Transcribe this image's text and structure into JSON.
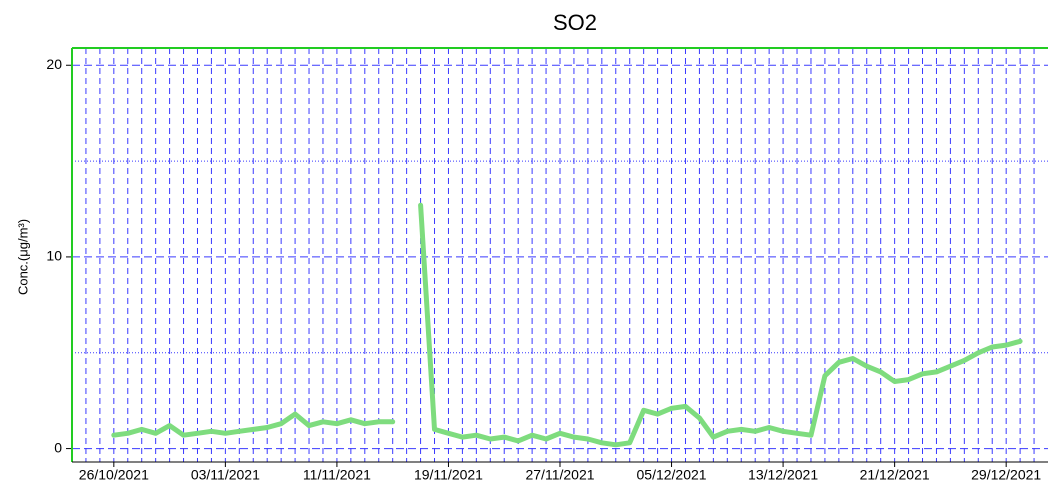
{
  "chart_data": {
    "type": "line",
    "title": "SO2",
    "y_label": "Conc.(μg/m³)",
    "x": [
      "26/10/2021",
      "27/10/2021",
      "28/10/2021",
      "29/10/2021",
      "30/10/2021",
      "31/10/2021",
      "01/11/2021",
      "02/11/2021",
      "03/11/2021",
      "04/11/2021",
      "05/11/2021",
      "06/11/2021",
      "07/11/2021",
      "08/11/2021",
      "09/11/2021",
      "10/11/2021",
      "11/11/2021",
      "12/11/2021",
      "13/11/2021",
      "14/11/2021",
      "15/11/2021",
      "16/11/2021",
      "17/11/2021",
      "18/11/2021",
      "19/11/2021",
      "20/11/2021",
      "21/11/2021",
      "22/11/2021",
      "23/11/2021",
      "24/11/2021",
      "25/11/2021",
      "26/11/2021",
      "27/11/2021",
      "28/11/2021",
      "29/11/2021",
      "30/11/2021",
      "01/12/2021",
      "02/12/2021",
      "03/12/2021",
      "04/12/2021",
      "05/12/2021",
      "06/12/2021",
      "07/12/2021",
      "08/12/2021",
      "09/12/2021",
      "10/12/2021",
      "11/12/2021",
      "12/12/2021",
      "13/12/2021",
      "14/12/2021",
      "15/12/2021",
      "16/12/2021",
      "17/12/2021",
      "18/12/2021",
      "19/12/2021",
      "20/12/2021",
      "21/12/2021",
      "22/12/2021",
      "23/12/2021",
      "24/12/2021",
      "25/12/2021",
      "26/12/2021",
      "27/12/2021",
      "28/12/2021",
      "29/12/2021",
      "30/12/2021"
    ],
    "series": [
      {
        "color": "#7edc7e",
        "values": [
          0.7,
          0.8,
          1.0,
          0.8,
          1.2,
          0.7,
          0.8,
          0.9,
          0.8,
          0.9,
          1.0,
          1.1,
          1.3,
          1.8,
          1.2,
          1.4,
          1.3,
          1.5,
          1.3,
          1.4,
          1.4,
          null,
          12.7,
          1.0,
          0.8,
          0.6,
          0.7,
          0.5,
          0.6,
          0.4,
          0.7,
          0.5,
          0.8,
          0.6,
          0.5,
          0.3,
          0.2,
          0.3,
          2.0,
          1.8,
          2.1,
          2.2,
          1.6,
          0.6,
          0.9,
          1.0,
          0.9,
          1.1,
          0.9,
          0.8,
          0.7,
          3.8,
          4.5,
          4.7,
          4.3,
          4.0,
          3.5,
          3.6,
          3.9,
          4.0,
          4.3,
          4.6,
          5.0,
          5.3,
          5.4,
          5.6
        ]
      }
    ],
    "xlim": [
      "23/10/2021",
      "01/01/2022"
    ],
    "xticks": [
      "26/10/2021",
      "03/11/2021",
      "11/11/2021",
      "19/11/2021",
      "27/11/2021",
      "05/12/2021",
      "13/12/2021",
      "21/12/2021",
      "29/12/2021"
    ],
    "ylim": [
      -0.7,
      20.9
    ],
    "yticks": [
      0,
      10,
      20
    ],
    "yminor": [
      5,
      15
    ],
    "xgrid_days": 1,
    "grid": true,
    "grid_color": "#3a3aff",
    "axis_color": "#22cc22"
  }
}
